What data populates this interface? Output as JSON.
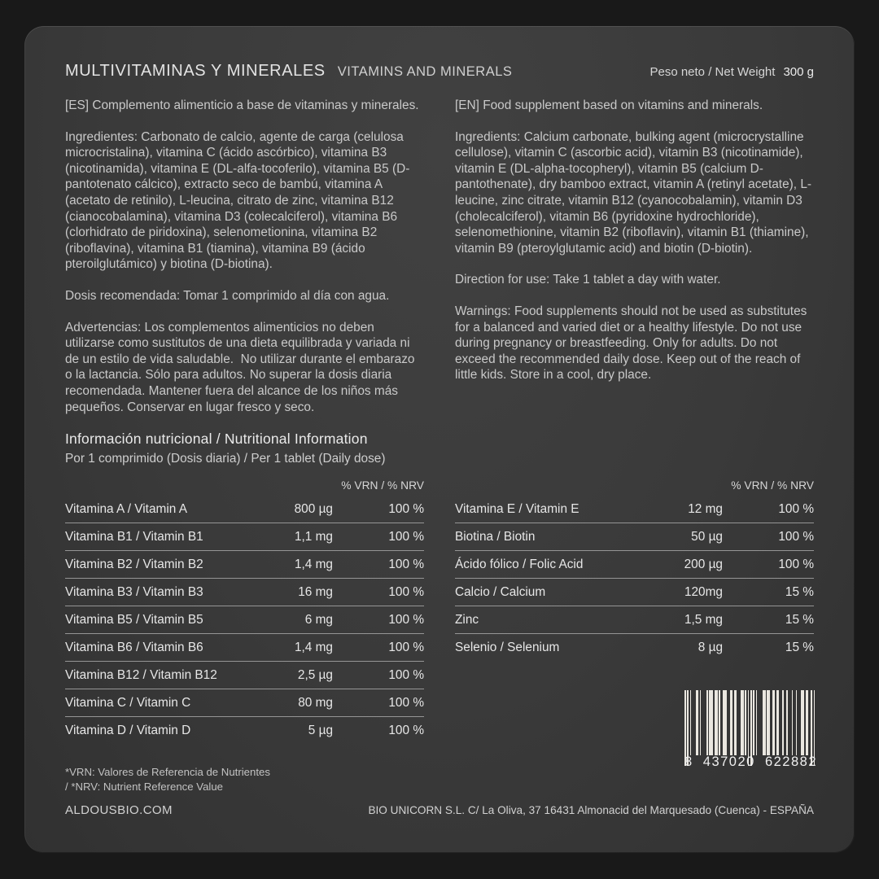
{
  "header": {
    "title_es": "MULTIVITAMINAS Y MINERALES",
    "title_en": "VITAMINS AND MINERALS",
    "net_weight_label": "Peso neto / Net Weight",
    "net_weight_value": "300 g"
  },
  "columns": {
    "es": {
      "intro": "[ES] Complemento alimenticio a base de vitaminas y minerales.",
      "ingredients": "Ingredientes: Carbonato de calcio, agente de carga (celulosa microcristalina), vitamina C (ácido ascórbico), vitamina B3 (nicotinamida), vitamina E (DL-alfa-tocoferilo), vitamina B5 (D-pantotenato cálcico), extracto seco de bambú, vitamina A (acetato de retinilo), L-leucina, citrato de zinc, vitamina B12 (cianocobalamina), vitamina D3 (colecalciferol), vitamina B6 (clorhidrato de piridoxina), selenometionina, vitamina B2 (riboflavina), vitamina B1 (tiamina), vitamina B9 (ácido pteroilglutámico) y biotina (D-biotina).",
      "dosage": "Dosis recomendada: Tomar 1 comprimido al día con agua.",
      "warnings": "Advertencias: Los complementos alimenticios no deben utilizarse como sustitutos de una dieta equilibrada y variada ni de un estilo de vida saludable.  No utilizar durante el embarazo o la lactancia. Sólo para adultos. No superar la dosis diaria recomendada. Mantener fuera del alcance de los niños más pequeños. Conservar en lugar fresco y seco."
    },
    "en": {
      "intro": "[EN] Food supplement based on vitamins and minerals.",
      "ingredients": "Ingredients: Calcium carbonate, bulking agent (microcrystalline cellulose), vitamin C (ascorbic acid), vitamin B3 (nicotinamide), vitamin E (DL-alpha-tocopheryl), vitamin B5 (calcium D-pantothenate), dry bamboo extract, vitamin A (retinyl acetate), L-leucine, zinc citrate, vitamin B12 (cyanocobalamin), vitamin D3 (cholecalciferol), vitamin B6 (pyridoxine hydrochloride), selenomethionine, vitamin B2 (riboflavin), vitamin B1 (thiamine), vitamin B9 (pteroylglutamic acid) and biotin (D-biotin).",
      "dosage": "Direction for use: Take 1 tablet a day with water.",
      "warnings": "Warnings: Food supplements should not be used as substitutes for a balanced and varied diet or a healthy lifestyle. Do not use during pregnancy or breastfeeding. Only for adults. Do not exceed the recommended daily dose. Keep out of the reach of little kids. Store in a cool, dry place."
    }
  },
  "nutrition": {
    "title": "Información nutricional / Nutritional Information",
    "subtitle": "Por 1 comprimido (Dosis diaria)  / Per 1 tablet (Daily dose)",
    "col_header": "% VRN / % NRV",
    "left_rows": [
      {
        "label": "Vitamina A / Vitamin A",
        "amount": "800 µg",
        "pct": "100 %"
      },
      {
        "label": "Vitamina B1 / Vitamin B1",
        "amount": "1,1 mg",
        "pct": "100 %"
      },
      {
        "label": "Vitamina B2 / Vitamin B2",
        "amount": "1,4 mg",
        "pct": "100 %"
      },
      {
        "label": "Vitamina B3 / Vitamin B3",
        "amount": "16 mg",
        "pct": "100 %"
      },
      {
        "label": "Vitamina B5 / Vitamin B5",
        "amount": "6 mg",
        "pct": "100 %"
      },
      {
        "label": "Vitamina B6 / Vitamin B6",
        "amount": "1,4 mg",
        "pct": "100 %"
      },
      {
        "label": "Vitamina B12 / Vitamin B12",
        "amount": "2,5 µg",
        "pct": "100 %"
      },
      {
        "label": "Vitamina C / Vitamin C",
        "amount": "80 mg",
        "pct": "100 %"
      },
      {
        "label": "Vitamina D / Vitamin D",
        "amount": "5 µg",
        "pct": "100 %"
      }
    ],
    "right_rows": [
      {
        "label": "Vitamina E / Vitamin E",
        "amount": "12 mg",
        "pct": "100 %"
      },
      {
        "label": "Biotina / Biotin",
        "amount": "50 µg",
        "pct": "100 %"
      },
      {
        "label": "Ácido fólico / Folic Acid",
        "amount": "200 µg",
        "pct": "100 %"
      },
      {
        "label": "Calcio / Calcium",
        "amount": "120mg",
        "pct": "15 %"
      },
      {
        "label": "Zinc",
        "amount": "1,5 mg",
        "pct": "15 %"
      },
      {
        "label": "Selenio / Selenium",
        "amount": "8 µg",
        "pct": "15 %"
      }
    ]
  },
  "footnote": {
    "line1": "*VRN: Valores de Referencia de Nutrientes",
    "line2": " / *NRV: Nutrient Reference Value"
  },
  "barcode": {
    "display_groups": [
      "8",
      "437020",
      "622882"
    ],
    "value": "8437020622882",
    "segments": [
      "101",
      "0100011",
      "0100001",
      "0111011",
      "0100111",
      "0011011",
      "0001101",
      "01010",
      "1010000",
      "1101100",
      "1101100",
      "1001000",
      "1001000",
      "1101100",
      "101"
    ]
  },
  "footer": {
    "website": "ALDOUSBIO.COM",
    "company": "BIO UNICORN S.L. C/ La Oliva, 37 16431 Almonacid del Marquesado (Cuenca) - ESPAÑA"
  },
  "colors": {
    "background": "#191919",
    "panel": "#3a3a3a",
    "text": "#c9c9c9",
    "rule": "#959595",
    "bar": "#eae7e0"
  }
}
